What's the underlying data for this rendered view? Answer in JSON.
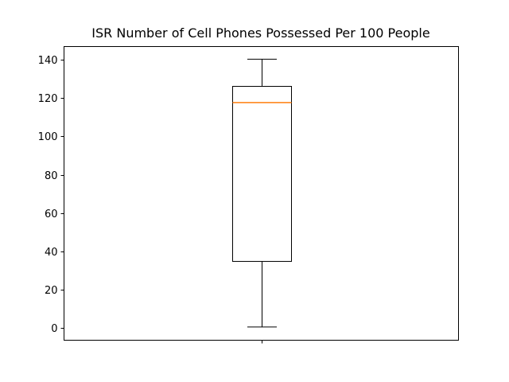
{
  "chart_data": {
    "type": "box",
    "title": "ISR Number of Cell Phones Possessed Per 100 People",
    "xlabel": "",
    "ylabel": "",
    "ylim": [
      -6.5,
      147
    ],
    "yticks": [
      0,
      20,
      40,
      60,
      80,
      100,
      120,
      140
    ],
    "grid": false,
    "boxes": [
      {
        "whisker_low": 0.4,
        "q1": 34.7,
        "median": 117.7,
        "q3": 126.2,
        "whisker_high": 140.4
      }
    ],
    "colors": {
      "box": "#000000",
      "median": "#ff7f0e",
      "axes": "#000000"
    }
  }
}
